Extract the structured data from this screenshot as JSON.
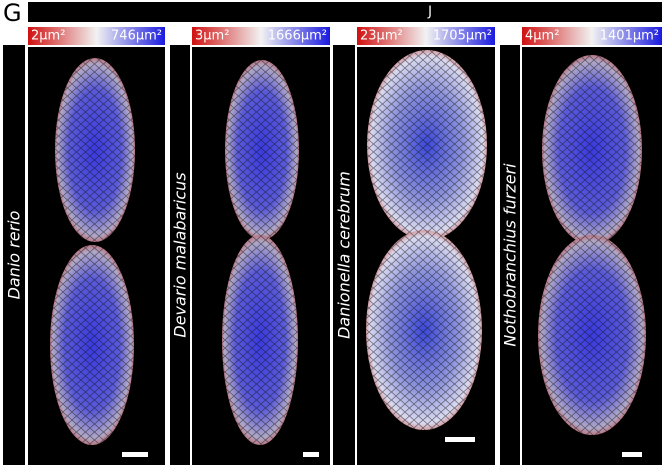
{
  "label": "G",
  "header": "J",
  "panels": [
    {
      "species": "Danio rerio",
      "min": "2µm²",
      "max": "746µm²"
    },
    {
      "species": "Devario malabaricus",
      "min": "3µm²",
      "max": "1666µm²"
    },
    {
      "species": "Danionella cerebrum",
      "min": "23µm²",
      "max": "1705µm²"
    },
    {
      "species": "Nothobranchius furzeri",
      "min": "4µm²",
      "max": "1401µm²"
    }
  ]
}
